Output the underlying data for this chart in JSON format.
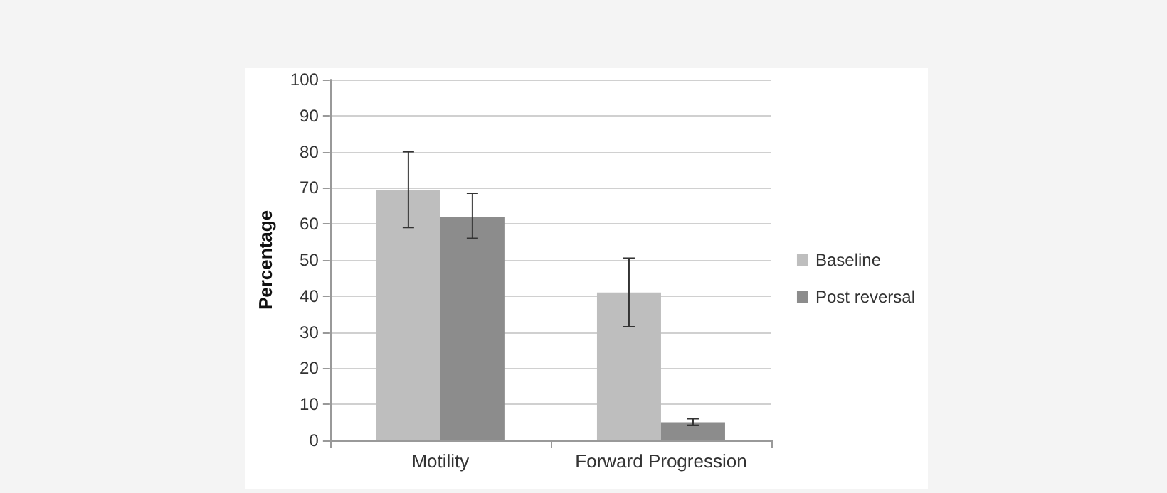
{
  "chart_data": {
    "type": "bar",
    "ylabel": "Percentage",
    "categories": [
      "Motility",
      "Forward Progression"
    ],
    "series": [
      {
        "name": "Baseline",
        "color": "#bebebe",
        "values": [
          69.5,
          41
        ],
        "errors": [
          [
            59,
            80
          ],
          [
            31.5,
            50.5
          ]
        ]
      },
      {
        "name": "Post reversal",
        "color": "#8c8c8c",
        "values": [
          62,
          5
        ],
        "errors": [
          [
            56,
            68.5
          ],
          [
            4.2,
            6
          ]
        ]
      }
    ],
    "ylim": [
      0,
      100
    ],
    "yticks": [
      0,
      10,
      20,
      30,
      40,
      50,
      60,
      70,
      80,
      90,
      100
    ],
    "grid": "y",
    "legend": "right"
  }
}
